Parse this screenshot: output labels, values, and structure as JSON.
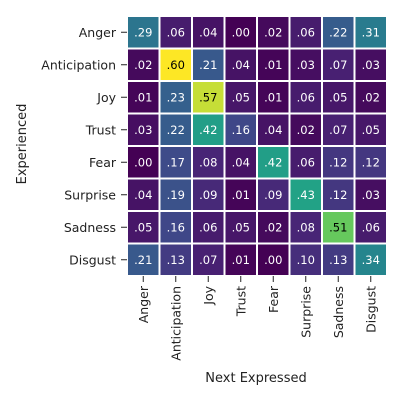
{
  "chart_data": {
    "type": "heatmap",
    "title": "",
    "xlabel": "Next Expressed",
    "ylabel": "Experienced",
    "x_categories": [
      "Anger",
      "Anticipation",
      "Joy",
      "Trust",
      "Fear",
      "Surprise",
      "Sadness",
      "Disgust"
    ],
    "y_categories": [
      "Anger",
      "Anticipation",
      "Joy",
      "Trust",
      "Fear",
      "Surprise",
      "Sadness",
      "Disgust"
    ],
    "values": [
      [
        0.29,
        0.06,
        0.04,
        0.0,
        0.02,
        0.06,
        0.22,
        0.31
      ],
      [
        0.02,
        0.6,
        0.21,
        0.04,
        0.01,
        0.03,
        0.07,
        0.03
      ],
      [
        0.01,
        0.23,
        0.57,
        0.05,
        0.01,
        0.06,
        0.05,
        0.02
      ],
      [
        0.03,
        0.22,
        0.42,
        0.16,
        0.04,
        0.02,
        0.07,
        0.05
      ],
      [
        0.0,
        0.17,
        0.08,
        0.04,
        0.42,
        0.06,
        0.12,
        0.12
      ],
      [
        0.04,
        0.19,
        0.09,
        0.01,
        0.09,
        0.43,
        0.12,
        0.03
      ],
      [
        0.05,
        0.16,
        0.06,
        0.05,
        0.02,
        0.08,
        0.51,
        0.06
      ],
      [
        0.21,
        0.13,
        0.07,
        0.01,
        0.0,
        0.1,
        0.13,
        0.34
      ]
    ],
    "cell_labels": [
      [
        ".29",
        ".06",
        ".04",
        ".00",
        ".02",
        ".06",
        ".22",
        ".31"
      ],
      [
        ".02",
        ".60",
        ".21",
        ".04",
        ".01",
        ".03",
        ".07",
        ".03"
      ],
      [
        ".01",
        ".23",
        ".57",
        ".05",
        ".01",
        ".06",
        ".05",
        ".02"
      ],
      [
        ".03",
        ".22",
        ".42",
        ".16",
        ".04",
        ".02",
        ".07",
        ".05"
      ],
      [
        ".00",
        ".17",
        ".08",
        ".04",
        ".42",
        ".06",
        ".12",
        ".12"
      ],
      [
        ".04",
        ".19",
        ".09",
        ".01",
        ".09",
        ".43",
        ".12",
        ".03"
      ],
      [
        ".05",
        ".16",
        ".06",
        ".05",
        ".02",
        ".08",
        ".51",
        ".06"
      ],
      [
        ".21",
        ".13",
        ".07",
        ".01",
        ".00",
        ".10",
        ".13",
        ".34"
      ]
    ],
    "colormap": "viridis",
    "value_range": [
      0.0,
      0.6
    ],
    "colorbar": false,
    "grid": false,
    "cell_border_color": "#ffffff"
  }
}
